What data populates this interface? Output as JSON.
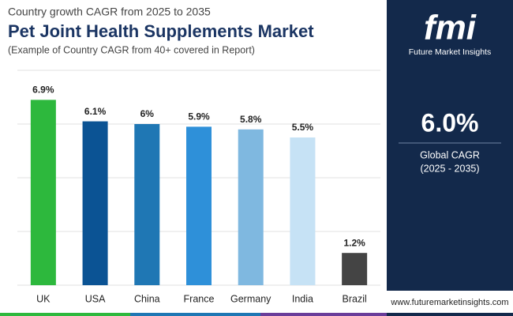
{
  "chart_data": {
    "type": "bar",
    "kicker": "Country growth CAGR from 2025 to 2035",
    "title": "Pet Joint Health Supplements Market",
    "subtitle": "(Example of Country CAGR from 40+ covered in Report)",
    "categories": [
      "UK",
      "USA",
      "China",
      "France",
      "Germany",
      "India",
      "Brazil"
    ],
    "values": [
      6.9,
      6.1,
      6,
      5.9,
      5.8,
      5.5,
      1.2
    ],
    "value_labels": [
      "6.9%",
      "6.1%",
      "6%",
      "5.9%",
      "5.8%",
      "5.5%",
      "1.2%"
    ],
    "colors": [
      "#2db83d",
      "#0b5394",
      "#1f77b4",
      "#2e90d9",
      "#7fb8e0",
      "#c6e2f5",
      "#444444"
    ],
    "ylim": [
      0,
      8
    ],
    "yticks": [
      0,
      2,
      4,
      6,
      8
    ],
    "grid": true
  },
  "panel": {
    "logo": "fmi",
    "brand": "Future Market Insights",
    "highlight": "6.0%",
    "highlight_label": "Global CAGR",
    "period": "(2025 - 2035)",
    "website": "www.futuremarketinsights.com"
  }
}
